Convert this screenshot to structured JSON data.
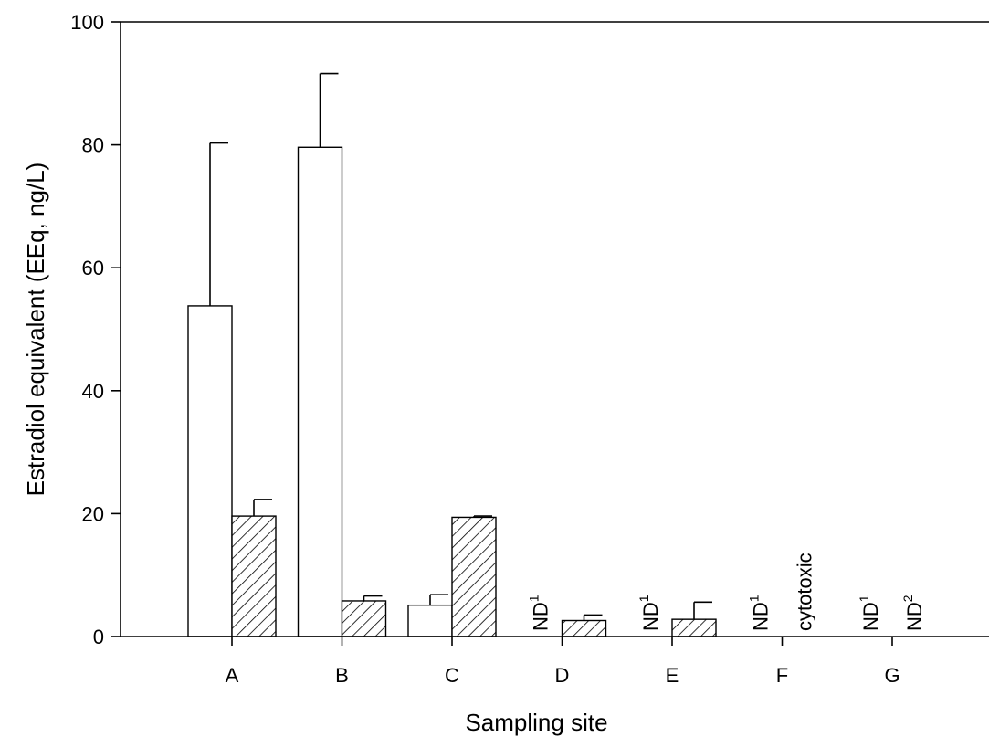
{
  "chart_data": {
    "type": "bar",
    "title": "",
    "xlabel": "Sampling site",
    "ylabel": "Estradiol equivalent (EEq, ng/L)",
    "ylim": [
      0,
      100
    ],
    "yticks": [
      "0",
      "20",
      "40",
      "60",
      "80",
      "100"
    ],
    "categories": [
      "A",
      "B",
      "C",
      "D",
      "E",
      "F",
      "G"
    ],
    "grid": false,
    "series": [
      {
        "style": "open",
        "fill": "#ffffff",
        "values": [
          53.8,
          79.6,
          5.1,
          null,
          null,
          null,
          null
        ],
        "errors": [
          26.5,
          12.0,
          1.7,
          null,
          null,
          null,
          null
        ]
      },
      {
        "style": "hatched",
        "fill": "#ffffff",
        "values": [
          19.6,
          5.8,
          19.4,
          2.6,
          2.8,
          null,
          null
        ],
        "errors": [
          2.7,
          0.8,
          0.2,
          0.9,
          2.8,
          null,
          null
        ]
      }
    ],
    "annotations": [
      {
        "category": "D",
        "series": 0,
        "text": "ND",
        "sup": "1"
      },
      {
        "category": "E",
        "series": 0,
        "text": "ND",
        "sup": "1"
      },
      {
        "category": "F",
        "series": 0,
        "text": "ND",
        "sup": "1"
      },
      {
        "category": "F",
        "series": 1,
        "text": "cytotoxic",
        "sup": ""
      },
      {
        "category": "G",
        "series": 0,
        "text": "ND",
        "sup": "1"
      },
      {
        "category": "G",
        "series": 1,
        "text": "ND",
        "sup": "2"
      }
    ]
  }
}
